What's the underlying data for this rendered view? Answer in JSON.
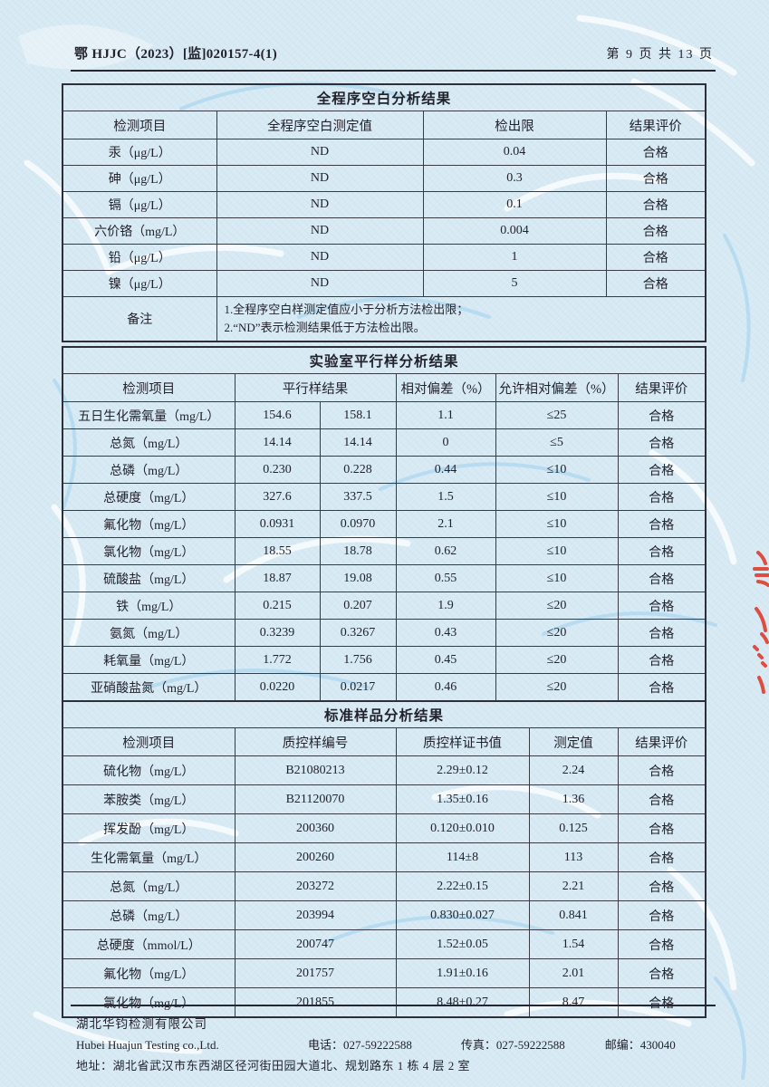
{
  "page": {
    "doc_number": "鄂 HJJC（2023）[监]020157-4(1)",
    "page_info": "第 9 页 共 13 页"
  },
  "colors": {
    "paper": "#d7e9f3",
    "ink": "#22222c",
    "table_border": "#3a3a44",
    "stamp_red": "#e03826",
    "watermark_blue": "#aed4ea"
  },
  "blank_table": {
    "title": "全程序空白分析结果",
    "headers": [
      "检测项目",
      "全程序空白测定值",
      "检出限",
      "结果评价"
    ],
    "rows": [
      [
        "汞（μg/L）",
        "ND",
        "0.04",
        "合格"
      ],
      [
        "砷（μg/L）",
        "ND",
        "0.3",
        "合格"
      ],
      [
        "镉（μg/L）",
        "ND",
        "0.1",
        "合格"
      ],
      [
        "六价铬（mg/L）",
        "ND",
        "0.004",
        "合格"
      ],
      [
        "铅（μg/L）",
        "ND",
        "1",
        "合格"
      ],
      [
        "镍（μg/L）",
        "ND",
        "5",
        "合格"
      ]
    ],
    "remark_label": "备注",
    "remark_lines": [
      "1.全程序空白样测定值应小于分析方法检出限；",
      "2.“ND”表示检测结果低于方法检出限。"
    ]
  },
  "parallel_table": {
    "title": "实验室平行样分析结果",
    "headers": [
      "检测项目",
      "平行样结果",
      "相对偏差（%）",
      "允许相对偏差（%）",
      "结果评价"
    ],
    "rows": [
      [
        "五日生化需氧量（mg/L）",
        "154.6",
        "158.1",
        "1.1",
        "≤25",
        "合格"
      ],
      [
        "总氮（mg/L）",
        "14.14",
        "14.14",
        "0",
        "≤5",
        "合格"
      ],
      [
        "总磷（mg/L）",
        "0.230",
        "0.228",
        "0.44",
        "≤10",
        "合格"
      ],
      [
        "总硬度（mg/L）",
        "327.6",
        "337.5",
        "1.5",
        "≤10",
        "合格"
      ],
      [
        "氟化物（mg/L）",
        "0.0931",
        "0.0970",
        "2.1",
        "≤10",
        "合格"
      ],
      [
        "氯化物（mg/L）",
        "18.55",
        "18.78",
        "0.62",
        "≤10",
        "合格"
      ],
      [
        "硫酸盐（mg/L）",
        "18.87",
        "19.08",
        "0.55",
        "≤10",
        "合格"
      ],
      [
        "铁（mg/L）",
        "0.215",
        "0.207",
        "1.9",
        "≤20",
        "合格"
      ],
      [
        "氨氮（mg/L）",
        "0.3239",
        "0.3267",
        "0.43",
        "≤20",
        "合格"
      ],
      [
        "耗氧量（mg/L）",
        "1.772",
        "1.756",
        "0.45",
        "≤20",
        "合格"
      ],
      [
        "亚硝酸盐氮（mg/L）",
        "0.0220",
        "0.0217",
        "0.46",
        "≤20",
        "合格"
      ]
    ]
  },
  "standard_table": {
    "title": "标准样品分析结果",
    "headers": [
      "检测项目",
      "质控样编号",
      "质控样证书值",
      "测定值",
      "结果评价"
    ],
    "rows": [
      [
        "硫化物（mg/L）",
        "B21080213",
        "2.29±0.12",
        "2.24",
        "合格"
      ],
      [
        "苯胺类（mg/L）",
        "B21120070",
        "1.35±0.16",
        "1.36",
        "合格"
      ],
      [
        "挥发酚（mg/L）",
        "200360",
        "0.120±0.010",
        "0.125",
        "合格"
      ],
      [
        "生化需氧量（mg/L）",
        "200260",
        "114±8",
        "113",
        "合格"
      ],
      [
        "总氮（mg/L）",
        "203272",
        "2.22±0.15",
        "2.21",
        "合格"
      ],
      [
        "总磷（mg/L）",
        "203994",
        "0.830±0.027",
        "0.841",
        "合格"
      ],
      [
        "总硬度（mmol/L）",
        "200747",
        "1.52±0.05",
        "1.54",
        "合格"
      ],
      [
        "氟化物（mg/L）",
        "201757",
        "1.91±0.16",
        "2.01",
        "合格"
      ],
      [
        "氯化物（mg/L）",
        "201855",
        "8.48±0.27",
        "8.47",
        "合格"
      ]
    ]
  },
  "footer": {
    "company_cn": "湖北华钧检测有限公司",
    "company_en": "Hubei Huajun Testing co.,Ltd.",
    "phone_label": "电话：",
    "phone": "027-59222588",
    "fax_label": "传真：",
    "fax": "027-59222588",
    "postcode_label": "邮编：",
    "postcode": "430040",
    "address": "地址：湖北省武汉市东西湖区径河街田园大道北、规划路东 1 栋 4 层 2 室"
  }
}
